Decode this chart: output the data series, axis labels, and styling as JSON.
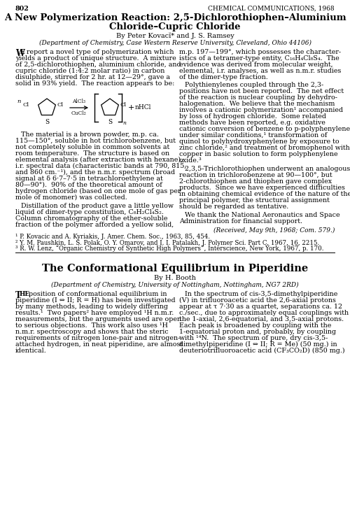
{
  "page_num": "802",
  "journal": "Chemical Communications, 1968",
  "title_line1": "A New Polymerization Reaction: 2,5-Dichlorothiophen–Aluminium",
  "title_line2": "Chloride–Cupric Chloride",
  "authors": "By Peter Kovacĭ* and J. S. Ramsey",
  "affiliation": "(Department of Chemistry, Case Western Reserve University, Cleveland, Ohio 44106)",
  "col1_p1_lines": [
    "We report a novel type of polymerization which",
    "yields a product of unique structure.  A mixture",
    "of 2,5-dichlorothiophen, aluminium chloride, and",
    "cupric chloride (1:4:2 molar ratio) in carbon",
    "disulphide, stirred for 2 hr. at 12—29°, gave a",
    "solid in 93% yield.  The reaction appears to be:"
  ],
  "col1_p2_lines": [
    "The material is a brown powder, m.p. ca.",
    "115—150°, soluble in hot trichlorobenzene, but",
    "not completely soluble in common solvents at",
    "room temperature.  The structure is based on",
    "elemental analysis (after extraction with hexane),",
    "i.r. spectral data (characteristic bands at 790, 815,",
    "and 860 cm.⁻¹), and the n.m.r. spectrum (broad",
    "signal at δ 6·7–7·5 in tetrachloroethylene at",
    "80—90°).  90% of the theoretical amount of",
    "hydrogen chloride (based on one mole of gas per",
    "mole of monomer) was collected."
  ],
  "col1_p3_lines": [
    "Distillation of the product gave a little yellow",
    "liquid of dimer-type constitution, C₈H₂Cl₄S₂.",
    "Column chromatography of the ether-soluble",
    "fraction of the polymer afforded a yellow solid,"
  ],
  "col2_p1_lines": [
    "m.p. 197—199°, which possesses the character-",
    "istics of a tetramer-type entity, C₁₆H₄Cl₈S₄.  The",
    "evidence was derived from molecular weight,",
    "elemental, i.r. analyses, as well as n.m.r. studies",
    "of the dimer-type fraction."
  ],
  "col2_p2_lines": [
    "Polythienylenes coupled through the 2,3-",
    "positions have not been reported.  The net effect",
    "of the reaction is nuclear coupling by dehydro-",
    "halogenation.  We believe that the mechanism",
    "involves a cationic polymerization¹ accompanied",
    "by loss of hydrogen chloride.  Some related",
    "methods have been reported, e.g. oxidative",
    "cationic conversion of benzene to p-polyphenylene",
    "under similar conditions,¹ transformation of",
    "quinol to polyhydroxyphenylene by exposure to",
    "zinc chloride,² and treatment of bromophenol with",
    "copper in basic solution to form polyphenylene",
    "oxide.³"
  ],
  "col2_p3_lines": [
    "2,3,5-Trichlorothiophen underwent an analogous",
    "reaction in trichlorobenzene at 90—100°, but",
    "2-chlorothiophen and thiophen gave complex",
    "products.  Since we have experienced difficulties",
    "in obtaining chemical evidence of the nature of the",
    "principal polymer, the structural assignment",
    "should be regarded as tentative."
  ],
  "col2_p4_lines": [
    "We thank the National Aeronautics and Space",
    "Administration for financial support."
  ],
  "received": "(Received, May 9th, 1968; Com. 579.)",
  "ref1": "¹ P. Kovacic and A. Kyriakis, J. Amer. Chem. Soc., 1963, 85, 454.",
  "ref2": "² Y. M. Paushkin, L. S. Polak, O. Y. Omarov, and I. I. Patalakh, J. Polymer Sci. Part C, 1967, 16, 2215.",
  "ref3": "³ R. W. Lenz, “Organic Chemistry of Synthetic High Polymers”, Interscience, New York, 1967, p. 170.",
  "title2": "The Conformational Equilibrium in Piperidine",
  "title2_author": "By H. Booth",
  "title2_affil": "(Department of Chemistry, University of Nottingham, Nottingham, NG7 2RD)",
  "sec2_col1_lines": [
    "The position of conformational equilibrium in",
    "piperidine (I ⇔ II; R = H) has been investigated",
    "by many methods, leading to widely differing",
    "results.¹  Two papers² have employed ¹H n.m.r.",
    "measurements, but the arguments used are open",
    "to serious objections.  This work also uses ¹H",
    "n.m.r. spectroscopy and shows that the steric",
    "requirements of nitrogen lone-pair and nitrogen-",
    "attached hydrogen, in neat piperidine, are almost",
    "identical."
  ],
  "sec2_col2_lines": [
    "In the spectrum of cis-3,5-dimethylpiperidine",
    "(V) in trifluoroacetic acid the 2,6-axial protons",
    "appear at τ 7·30 as a quartet, separations ca. 12",
    "c./sec., due to approximately equal couplings with",
    "the 1-axial, 2,6-equatorial, and 3,5-axial protons.",
    "Each peak is broadened by coupling with the",
    "1-equatorial proton and, probably, by coupling",
    "with ¹⁴N.  The spectrum of pure, dry cis-3,5-",
    "dimethylpiperidine (I ⇔ II; R = Me) (50 mg.) in",
    "deuteriotrifluoroacetic acid (CF₃CO₂D) (850 mg.)"
  ]
}
